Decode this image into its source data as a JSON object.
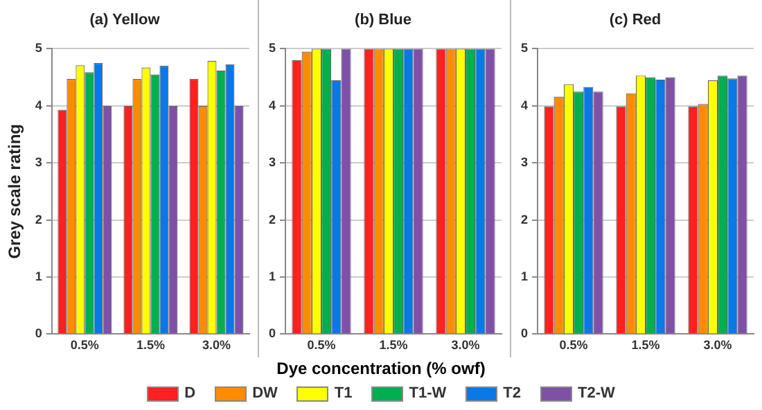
{
  "chart_data": [
    {
      "type": "bar",
      "title": "(a) Yellow",
      "ylabel": "Grey scale rating",
      "categories": [
        "0.5%",
        "1.5%",
        "3.0%"
      ],
      "ylim": [
        0,
        5
      ],
      "yticks": [
        0,
        1,
        2,
        3,
        4,
        5
      ],
      "grid": "y",
      "series": [
        {
          "color": "#ff2020",
          "values": [
            3.93,
            4.0,
            4.47
          ]
        },
        {
          "color": "#ff8c00",
          "values": [
            4.47,
            4.47,
            4.0
          ]
        },
        {
          "color": "#ffff00",
          "values": [
            4.71,
            4.67,
            4.79
          ]
        },
        {
          "color": "#00b050",
          "values": [
            4.59,
            4.55,
            4.62
          ]
        },
        {
          "color": "#0a78e6",
          "values": [
            4.75,
            4.7,
            4.73
          ]
        },
        {
          "color": "#7f50a8",
          "values": [
            4.0,
            4.0,
            4.0
          ]
        }
      ]
    },
    {
      "type": "bar",
      "title": "(b) Blue",
      "xlabel": "Dye concentration (% owf)",
      "categories": [
        "0.5%",
        "1.5%",
        "3.0%"
      ],
      "ylim": [
        0,
        5
      ],
      "yticks": [
        0,
        1,
        2,
        3,
        4,
        5
      ],
      "grid": "y",
      "legend": "bottom",
      "series": [
        {
          "name": "D",
          "color": "#ff2020",
          "values": [
            4.8,
            5,
            5
          ]
        },
        {
          "name": "DW",
          "color": "#ff8c00",
          "values": [
            4.95,
            5,
            5
          ]
        },
        {
          "name": "T1",
          "color": "#ffff00",
          "values": [
            5,
            5,
            5
          ]
        },
        {
          "name": "T1-W",
          "color": "#00b050",
          "values": [
            5,
            5,
            5
          ]
        },
        {
          "name": "T2",
          "color": "#0a78e6",
          "values": [
            4.45,
            5,
            5
          ]
        },
        {
          "name": "T2-W",
          "color": "#7f50a8",
          "values": [
            5,
            5,
            5
          ]
        }
      ]
    },
    {
      "type": "bar",
      "title": "(c) Red",
      "categories": [
        "0.5%",
        "1.5%",
        "3.0%"
      ],
      "ylim": [
        0,
        5
      ],
      "yticks": [
        0,
        1,
        2,
        3,
        4,
        5
      ],
      "grid": "y",
      "series": [
        {
          "color": "#ff2020",
          "values": [
            3.99,
            3.99,
            3.99
          ]
        },
        {
          "color": "#ff8c00",
          "values": [
            4.16,
            4.22,
            4.03
          ]
        },
        {
          "color": "#ffff00",
          "values": [
            4.38,
            4.53,
            4.45
          ]
        },
        {
          "color": "#00b050",
          "values": [
            4.25,
            4.5,
            4.53
          ]
        },
        {
          "color": "#0a78e6",
          "values": [
            4.33,
            4.46,
            4.48
          ]
        },
        {
          "color": "#7f50a8",
          "values": [
            4.25,
            4.5,
            4.53
          ]
        }
      ]
    }
  ]
}
